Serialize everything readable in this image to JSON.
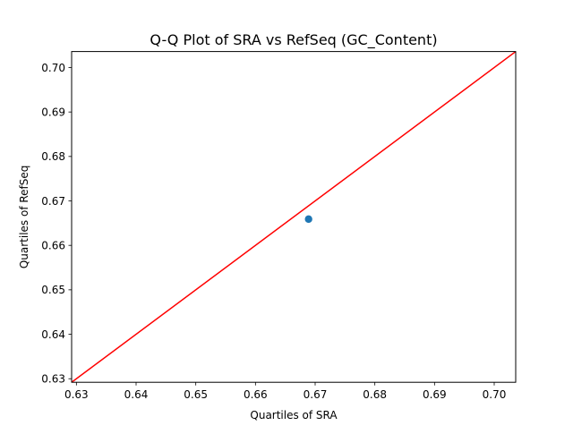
{
  "chart_data": {
    "type": "scatter",
    "title": "Q-Q Plot of SRA vs RefSeq (GC_Content)",
    "xlabel": "Quartiles of SRA",
    "ylabel": "Quartiles of RefSeq",
    "xlim": [
      0.6292,
      0.7036
    ],
    "ylim": [
      0.6292,
      0.7036
    ],
    "xticks": [
      "0.63",
      "0.64",
      "0.65",
      "0.66",
      "0.67",
      "0.68",
      "0.69",
      "0.70"
    ],
    "yticks": [
      "0.63",
      "0.64",
      "0.65",
      "0.66",
      "0.67",
      "0.68",
      "0.69",
      "0.70"
    ],
    "grid": false,
    "points": [
      {
        "x": 0.6689,
        "y": 0.6659
      }
    ],
    "reference_line": {
      "from": [
        0.6292,
        0.6292
      ],
      "to": [
        0.7036,
        0.7036
      ]
    },
    "colors": {
      "points": "#1f77b4",
      "reference_line": "#ff0000"
    }
  }
}
